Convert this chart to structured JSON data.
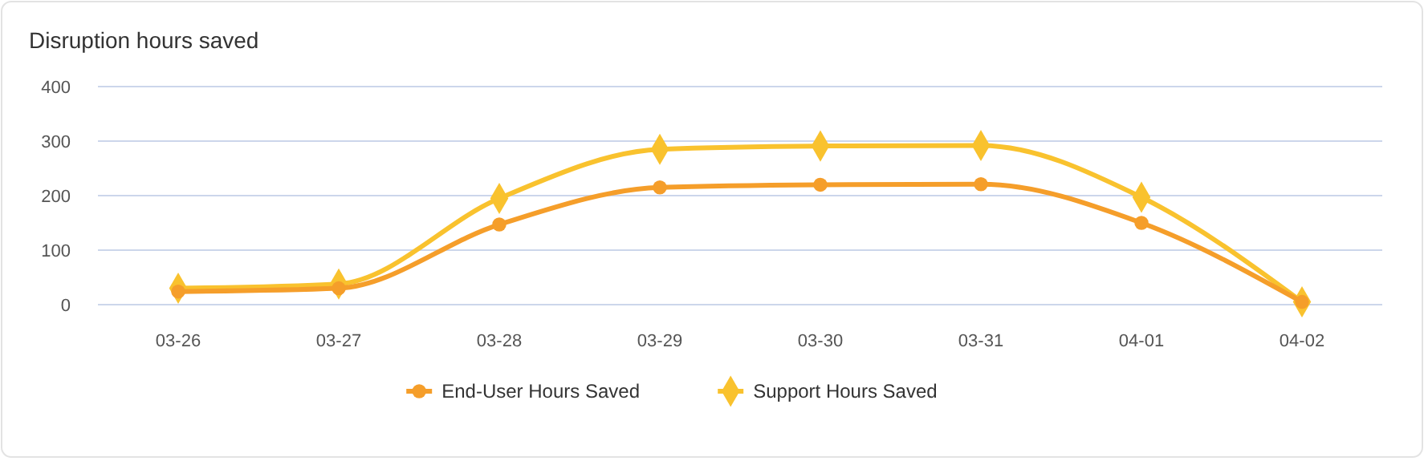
{
  "chart_data": {
    "type": "line",
    "title": "Disruption hours saved",
    "categories": [
      "03-26",
      "03-27",
      "03-28",
      "03-29",
      "03-30",
      "03-31",
      "04-01",
      "04-02"
    ],
    "series": [
      {
        "name": "End-User Hours Saved",
        "color": "#f59e2a",
        "marker": "circle",
        "values": [
          24,
          30,
          147,
          215,
          220,
          221,
          150,
          5
        ]
      },
      {
        "name": "Support Hours Saved",
        "color": "#f9c22e",
        "marker": "diamond",
        "values": [
          30,
          38,
          195,
          285,
          291,
          292,
          197,
          5
        ]
      }
    ],
    "ylim": [
      0,
      400
    ],
    "yticks": [
      0,
      100,
      200,
      300,
      400
    ],
    "grid": "y",
    "legend": "bottom"
  }
}
